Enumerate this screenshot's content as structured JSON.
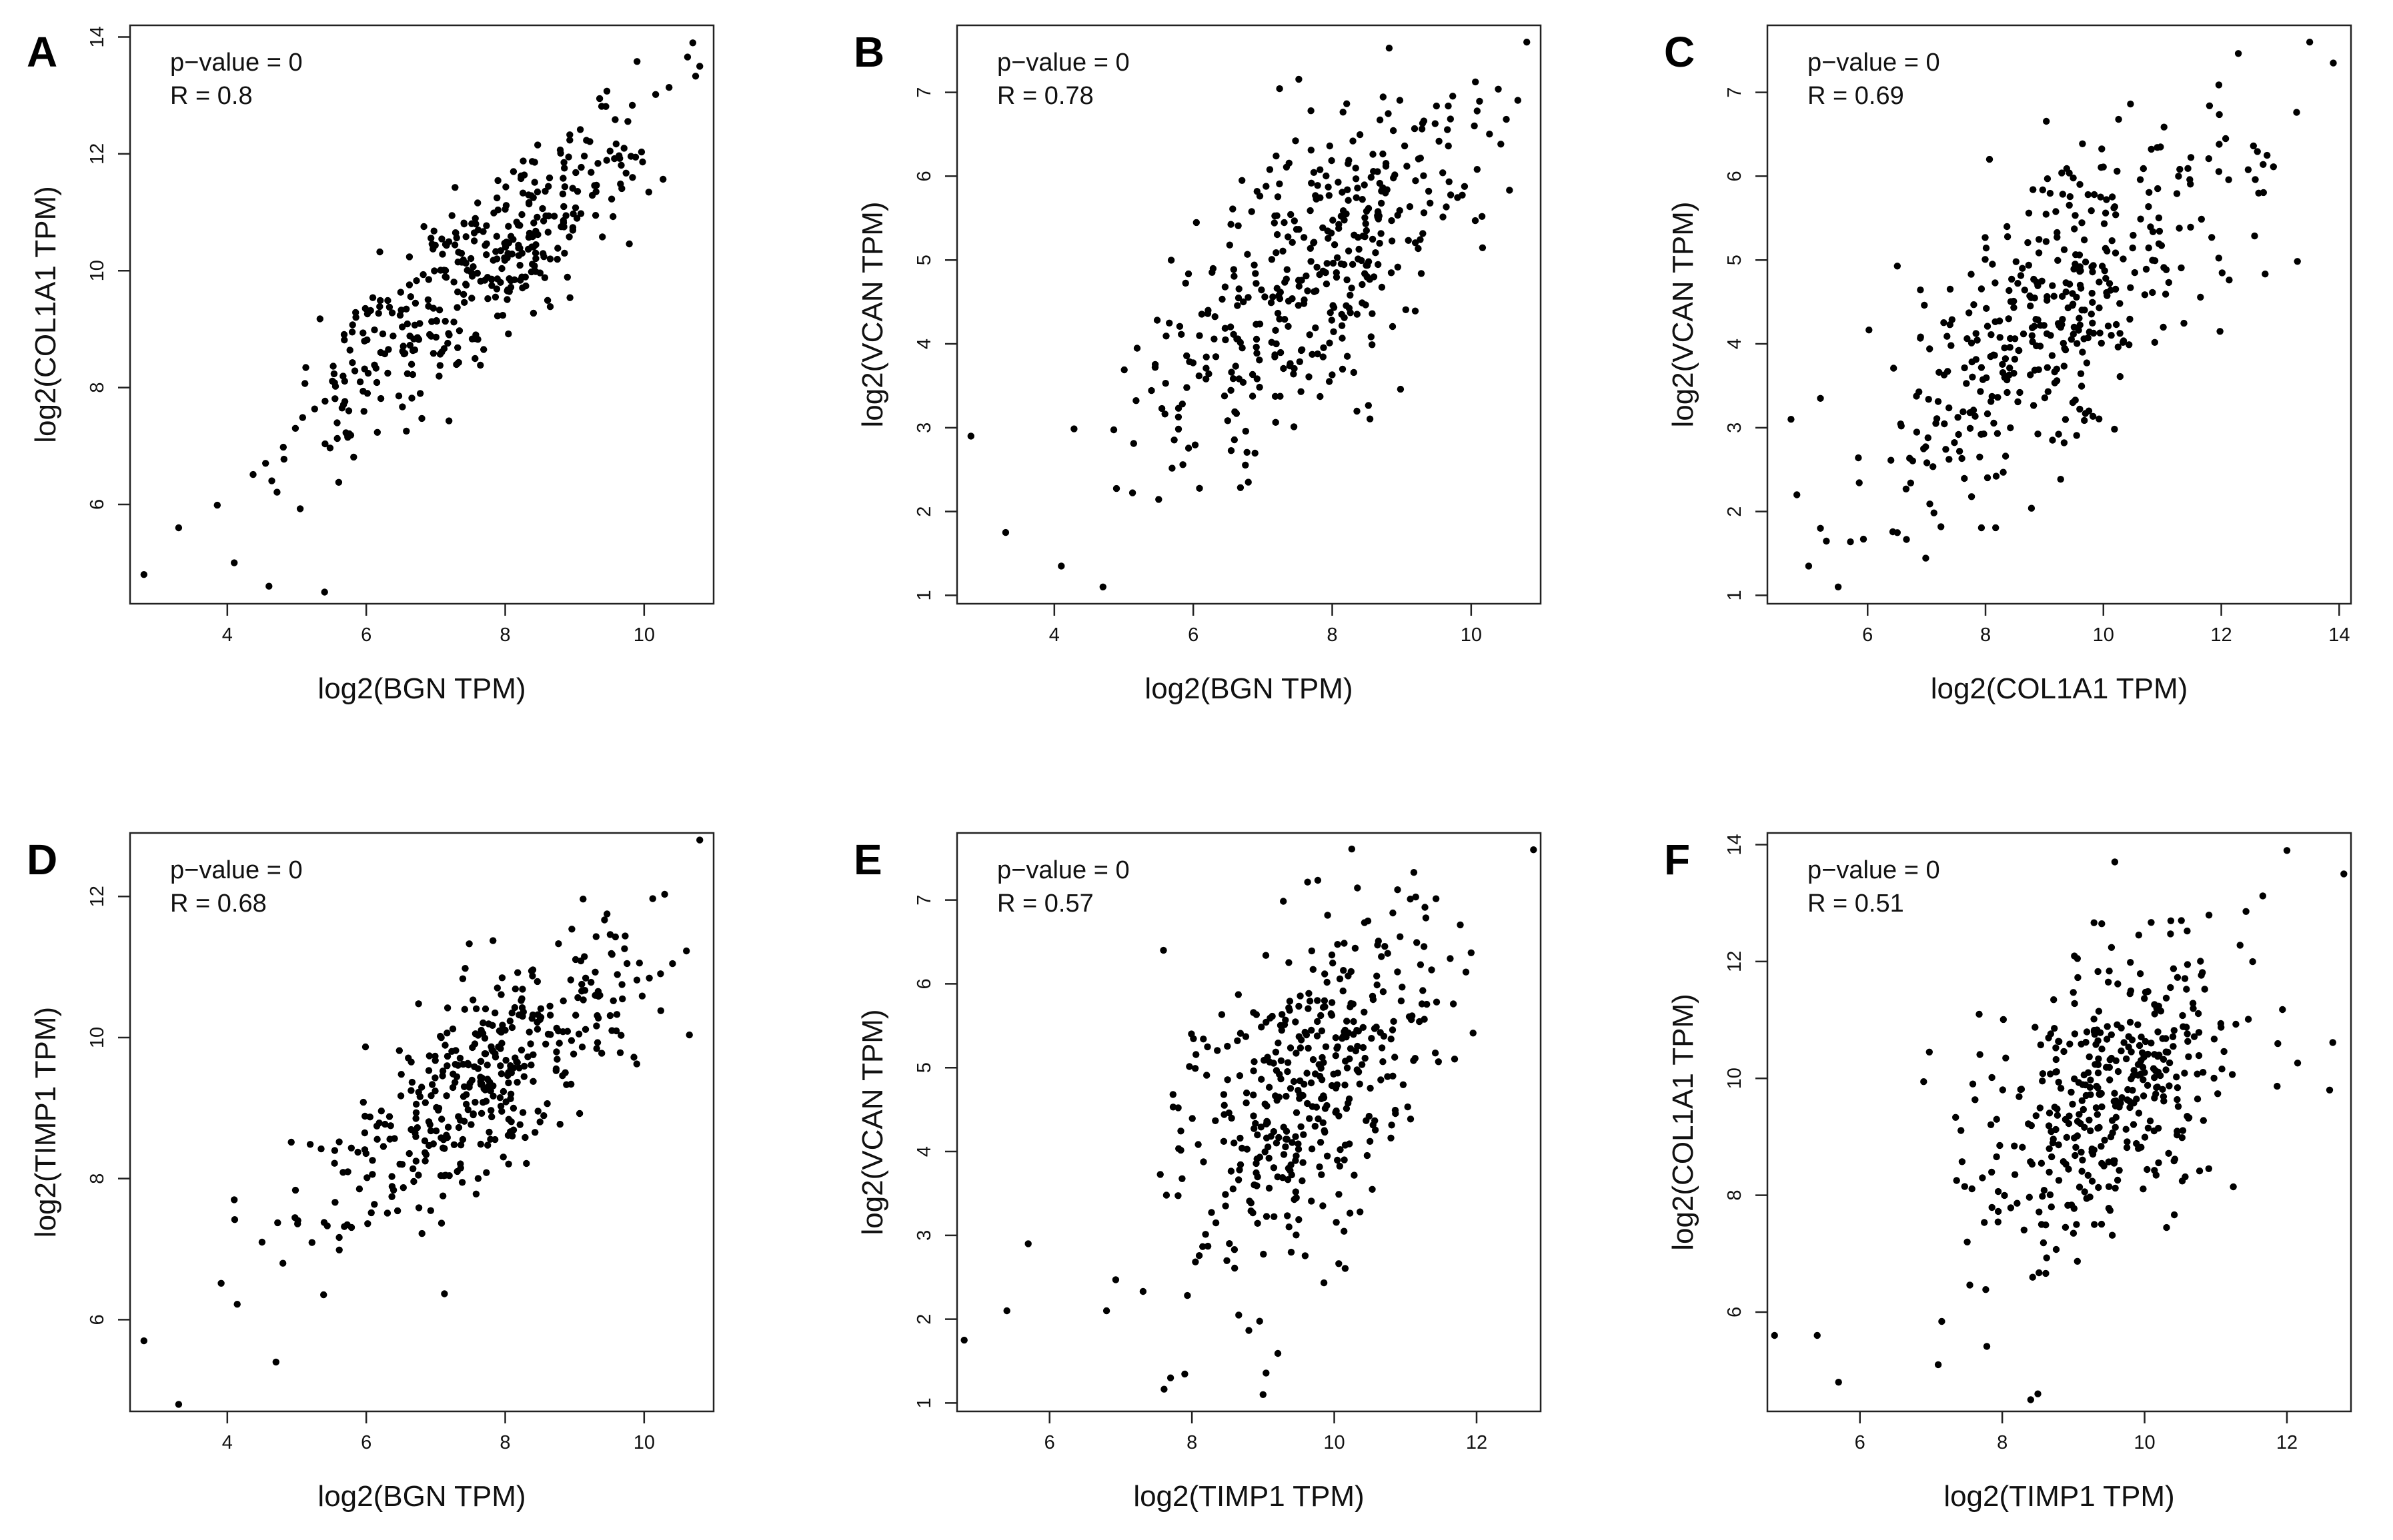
{
  "figure": {
    "panels_count": 6
  },
  "chart_data": [
    {
      "panel": "A",
      "type": "scatter",
      "xlabel": "log2(BGN TPM)",
      "ylabel": "log2(COL1A1 TPM)",
      "annotations": [
        "p−value = 0",
        "R = 0.8"
      ],
      "p_value": 0,
      "r": 0.8,
      "xlim": [
        2.6,
        11.0
      ],
      "ylim": [
        4.3,
        14.2
      ],
      "xticks": [
        4,
        6,
        8,
        10
      ],
      "yticks": [
        6,
        8,
        10,
        12,
        14
      ],
      "n_points": 400,
      "seed": 101,
      "x_mean": 7.7,
      "x_sd": 1.25,
      "noise_sd": 0.75,
      "fixed_points": [
        [
          2.8,
          4.8
        ],
        [
          3.3,
          5.6
        ],
        [
          10.7,
          13.9
        ],
        [
          10.8,
          13.5
        ],
        [
          5.4,
          4.5
        ],
        [
          4.1,
          5.0
        ],
        [
          4.6,
          4.6
        ]
      ]
    },
    {
      "panel": "B",
      "type": "scatter",
      "xlabel": "log2(BGN TPM)",
      "ylabel": "log2(VCAN TPM)",
      "annotations": [
        "p−value = 0",
        "R = 0.78"
      ],
      "p_value": 0,
      "r": 0.78,
      "xlim": [
        2.6,
        11.0
      ],
      "ylim": [
        0.9,
        7.8
      ],
      "xticks": [
        4,
        6,
        8,
        10
      ],
      "yticks": [
        1,
        2,
        3,
        4,
        5,
        6,
        7
      ],
      "n_points": 400,
      "seed": 202,
      "x_mean": 7.7,
      "x_sd": 1.25,
      "noise_sd": 0.78,
      "fixed_points": [
        [
          2.8,
          2.9
        ],
        [
          3.3,
          1.75
        ],
        [
          4.1,
          1.35
        ],
        [
          4.7,
          1.1
        ],
        [
          10.8,
          7.6
        ]
      ]
    },
    {
      "panel": "C",
      "type": "scatter",
      "xlabel": "log2(COL1A1 TPM)",
      "ylabel": "log2(VCAN TPM)",
      "annotations": [
        "p−value = 0",
        "R = 0.69"
      ],
      "p_value": 0,
      "r": 0.69,
      "xlim": [
        4.3,
        14.2
      ],
      "ylim": [
        0.9,
        7.8
      ],
      "xticks": [
        6,
        8,
        10,
        12,
        14
      ],
      "yticks": [
        1,
        2,
        3,
        4,
        5,
        6,
        7
      ],
      "n_points": 400,
      "seed": 303,
      "x_mean": 9.3,
      "x_sd": 1.45,
      "noise_sd": 0.8,
      "fixed_points": [
        [
          4.7,
          3.1
        ],
        [
          4.8,
          2.2
        ],
        [
          5.0,
          1.35
        ],
        [
          5.2,
          1.8
        ],
        [
          5.5,
          1.1
        ],
        [
          13.5,
          7.6
        ],
        [
          13.9,
          7.35
        ],
        [
          5.2,
          3.35
        ]
      ]
    },
    {
      "panel": "D",
      "type": "scatter",
      "xlabel": "log2(BGN TPM)",
      "ylabel": "log2(TIMP1 TPM)",
      "annotations": [
        "p−value = 0",
        "R = 0.68"
      ],
      "p_value": 0,
      "r": 0.68,
      "xlim": [
        2.6,
        11.0
      ],
      "ylim": [
        4.7,
        12.9
      ],
      "xticks": [
        4,
        6,
        8,
        10
      ],
      "yticks": [
        6,
        8,
        10,
        12
      ],
      "n_points": 400,
      "seed": 404,
      "x_mean": 7.7,
      "x_sd": 1.25,
      "noise_sd": 0.7,
      "fixed_points": [
        [
          2.8,
          5.7
        ],
        [
          3.3,
          4.8
        ],
        [
          4.7,
          5.4
        ],
        [
          4.8,
          6.8
        ],
        [
          10.8,
          12.8
        ],
        [
          4.5,
          7.1
        ],
        [
          4.1,
          7.7
        ]
      ]
    },
    {
      "panel": "E",
      "type": "scatter",
      "xlabel": "log2(TIMP1 TPM)",
      "ylabel": "log2(VCAN TPM)",
      "annotations": [
        "p−value = 0",
        "R = 0.57"
      ],
      "p_value": 0,
      "r": 0.57,
      "xlim": [
        4.7,
        12.9
      ],
      "ylim": [
        0.9,
        7.8
      ],
      "xticks": [
        6,
        8,
        10,
        12
      ],
      "yticks": [
        1,
        2,
        3,
        4,
        5,
        6,
        7
      ],
      "n_points": 400,
      "seed": 505,
      "x_mean": 9.6,
      "x_sd": 0.95,
      "noise_sd": 1.0,
      "fixed_points": [
        [
          4.8,
          1.75
        ],
        [
          5.4,
          2.1
        ],
        [
          5.7,
          2.9
        ],
        [
          6.8,
          2.1
        ],
        [
          7.7,
          1.3
        ],
        [
          9.0,
          1.1
        ],
        [
          12.8,
          7.6
        ],
        [
          7.6,
          6.4
        ]
      ]
    },
    {
      "panel": "F",
      "type": "scatter",
      "xlabel": "log2(TIMP1 TPM)",
      "ylabel": "log2(COL1A1 TPM)",
      "annotations": [
        "p−value = 0",
        "R = 0.51"
      ],
      "p_value": 0,
      "r": 0.51,
      "xlim": [
        4.7,
        12.9
      ],
      "ylim": [
        4.3,
        14.2
      ],
      "xticks": [
        6,
        8,
        10,
        12
      ],
      "yticks": [
        6,
        8,
        10,
        12,
        14
      ],
      "n_points": 400,
      "seed": 606,
      "x_mean": 9.6,
      "x_sd": 0.95,
      "noise_sd": 1.2,
      "fixed_points": [
        [
          4.8,
          5.6
        ],
        [
          5.4,
          5.6
        ],
        [
          5.7,
          4.8
        ],
        [
          7.1,
          5.1
        ],
        [
          8.4,
          4.5
        ],
        [
          8.5,
          4.6
        ],
        [
          12.0,
          13.9
        ],
        [
          12.8,
          13.5
        ],
        [
          12.6,
          9.8
        ]
      ]
    }
  ]
}
